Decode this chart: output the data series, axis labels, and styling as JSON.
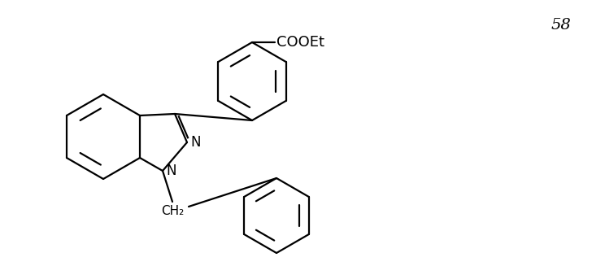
{
  "background_color": "#ffffff",
  "line_color": "#000000",
  "line_width": 1.6,
  "figure_number": "58",
  "label_COOEt": "COOEt",
  "label_N_upper": "N",
  "label_N_lower": "N",
  "label_CH2": "CH₂",
  "fig_width": 7.28,
  "fig_height": 3.27,
  "dpi": 100
}
